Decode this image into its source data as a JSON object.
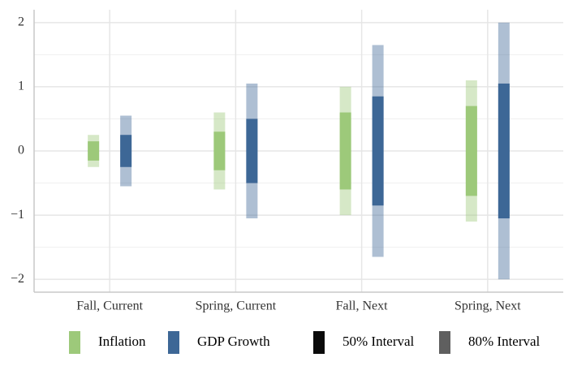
{
  "chart_data": {
    "type": "interval",
    "categories": [
      "Fall, Current",
      "Spring, Current",
      "Fall, Next",
      "Spring, Next"
    ],
    "series": [
      {
        "name": "Inflation",
        "color": "#9dc97a",
        "low50": [
          -0.15,
          -0.3,
          -0.6,
          -0.7
        ],
        "high50": [
          0.15,
          0.3,
          0.6,
          0.7
        ],
        "low80": [
          -0.25,
          -0.6,
          -1,
          -1.1
        ],
        "high80": [
          0.25,
          0.6,
          1,
          1.1
        ]
      },
      {
        "name": "GDP Growth",
        "color": "#3d6796",
        "low50": [
          -0.25,
          -0.5,
          -0.85,
          -1.05
        ],
        "high50": [
          0.25,
          0.5,
          0.85,
          1.05
        ],
        "low80": [
          -0.55,
          -1.05,
          -1.65,
          -2
        ],
        "high80": [
          0.55,
          1.05,
          1.65,
          2
        ]
      }
    ],
    "intervals": [
      {
        "name": "50% Interval",
        "color": "#0a0a0a"
      },
      {
        "name": "80% Interval",
        "color": "#5f5f5f"
      }
    ],
    "ylim": [
      -2.2,
      2.2
    ],
    "yticks": [
      {
        "value": -2,
        "label": "−2"
      },
      {
        "value": -1,
        "label": "−1"
      },
      0,
      1,
      2
    ],
    "grid": true
  }
}
